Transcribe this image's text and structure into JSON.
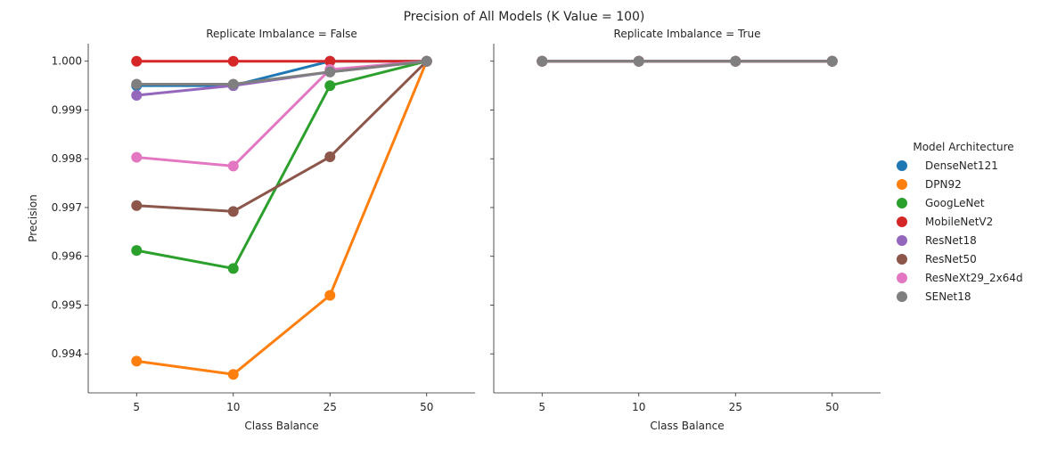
{
  "chart_data": {
    "type": "line",
    "title": "Precision of All Models (K Value = 100)",
    "xlabel": "Class Balance",
    "ylabel": "Precision",
    "categories": [
      "5",
      "10",
      "25",
      "50"
    ],
    "ylim": [
      0.9932,
      1.00036
    ],
    "yticks": [
      "0.994",
      "0.995",
      "0.996",
      "0.997",
      "0.998",
      "0.999",
      "1.000"
    ],
    "grid": false,
    "legend": {
      "title": "Model Architecture",
      "placement": "right"
    },
    "panels": [
      {
        "title": "Replicate Imbalance = False",
        "series": [
          {
            "name": "DenseNet121",
            "color": "#1f77b4",
            "values": [
              0.9995,
              0.9995,
              1.0,
              1.0
            ]
          },
          {
            "name": "DPN92",
            "color": "#ff7f0e",
            "values": [
              0.99385,
              0.99358,
              0.9952,
              1.0
            ]
          },
          {
            "name": "GoogLeNet",
            "color": "#2ca02c",
            "values": [
              0.99612,
              0.99575,
              0.9995,
              1.0
            ]
          },
          {
            "name": "MobileNetV2",
            "color": "#d62728",
            "values": [
              1.0,
              1.0,
              1.0,
              1.0
            ]
          },
          {
            "name": "ResNet18",
            "color": "#9467bd",
            "values": [
              0.9993,
              0.9995,
              0.99978,
              1.0
            ]
          },
          {
            "name": "ResNet50",
            "color": "#8c564b",
            "values": [
              0.99704,
              0.99692,
              0.99804,
              1.0
            ]
          },
          {
            "name": "ResNeXt29_2x64d",
            "color": "#e377c2",
            "values": [
              0.99803,
              0.99785,
              0.99983,
              1.0
            ]
          },
          {
            "name": "SENet18",
            "color": "#7f7f7f",
            "values": [
              0.99953,
              0.99953,
              0.99978,
              1.0
            ]
          }
        ]
      },
      {
        "title": "Replicate Imbalance = True",
        "series": [
          {
            "name": "DenseNet121",
            "color": "#1f77b4",
            "values": [
              1.0,
              1.0,
              1.0,
              1.0
            ]
          },
          {
            "name": "DPN92",
            "color": "#ff7f0e",
            "values": [
              1.0,
              1.0,
              1.0,
              1.0
            ]
          },
          {
            "name": "GoogLeNet",
            "color": "#2ca02c",
            "values": [
              1.0,
              1.0,
              1.0,
              1.0
            ]
          },
          {
            "name": "MobileNetV2",
            "color": "#d62728",
            "values": [
              1.0,
              1.0,
              1.0,
              1.0
            ]
          },
          {
            "name": "ResNet18",
            "color": "#9467bd",
            "values": [
              1.0,
              1.0,
              1.0,
              1.0
            ]
          },
          {
            "name": "ResNet50",
            "color": "#8c564b",
            "values": [
              1.0,
              1.0,
              1.0,
              1.0
            ]
          },
          {
            "name": "ResNeXt29_2x64d",
            "color": "#e377c2",
            "values": [
              1.0,
              1.0,
              1.0,
              1.0
            ]
          },
          {
            "name": "SENet18",
            "color": "#7f7f7f",
            "values": [
              1.0,
              1.0,
              1.0,
              1.0
            ]
          }
        ]
      }
    ]
  }
}
